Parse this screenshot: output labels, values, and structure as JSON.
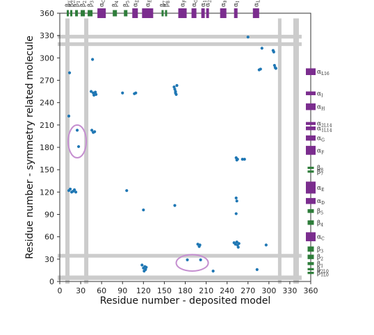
{
  "chart_data": {
    "type": "scatter",
    "xlabel": "Residue number - deposited model",
    "ylabel": "Residue number - symmetry related molecule",
    "xlim": [
      0,
      360
    ],
    "ylim": [
      0,
      360
    ],
    "x_ticks": [
      0,
      30,
      60,
      90,
      120,
      150,
      180,
      210,
      240,
      270,
      300,
      330,
      360
    ],
    "y_ticks": [
      0,
      30,
      60,
      90,
      120,
      150,
      180,
      210,
      240,
      270,
      300,
      330,
      360
    ],
    "point_color": "#1f77b4",
    "grey_band_color": "#cccccc",
    "highlight_color": "#c58fd0",
    "helix_color": "#7b2d8e",
    "strand_color": "#2e7d3a",
    "grey_bands": {
      "vertical": [
        [
          8,
          14
        ],
        [
          35,
          41
        ],
        [
          313,
          318
        ],
        [
          335,
          343
        ]
      ],
      "horizontal": [
        [
          2,
          8
        ],
        [
          32,
          37
        ],
        [
          316,
          321
        ],
        [
          326,
          331
        ]
      ]
    },
    "highlight_ellipses": [
      {
        "cx": 25,
        "cy": 188,
        "rx": 13,
        "ry": 22
      },
      {
        "cx": 190,
        "cy": 25,
        "rx": 23,
        "ry": 11
      }
    ],
    "points": [
      {
        "x": 14,
        "y": 280
      },
      {
        "x": 13,
        "y": 222
      },
      {
        "x": 25,
        "y": 203
      },
      {
        "x": 27,
        "y": 181
      },
      {
        "x": 13,
        "y": 122
      },
      {
        "x": 15,
        "y": 124
      },
      {
        "x": 17,
        "y": 120
      },
      {
        "x": 19,
        "y": 121
      },
      {
        "x": 21,
        "y": 123
      },
      {
        "x": 23,
        "y": 120
      },
      {
        "x": 45,
        "y": 255
      },
      {
        "x": 48,
        "y": 253
      },
      {
        "x": 49,
        "y": 250
      },
      {
        "x": 50,
        "y": 252
      },
      {
        "x": 51,
        "y": 254
      },
      {
        "x": 52,
        "y": 251
      },
      {
        "x": 47,
        "y": 298
      },
      {
        "x": 46,
        "y": 203
      },
      {
        "x": 48,
        "y": 200
      },
      {
        "x": 50,
        "y": 201
      },
      {
        "x": 90,
        "y": 253
      },
      {
        "x": 107,
        "y": 252
      },
      {
        "x": 109,
        "y": 253
      },
      {
        "x": 96,
        "y": 122
      },
      {
        "x": 120,
        "y": 96
      },
      {
        "x": 118,
        "y": 22
      },
      {
        "x": 120,
        "y": 18
      },
      {
        "x": 121,
        "y": 14
      },
      {
        "x": 122,
        "y": 20
      },
      {
        "x": 123,
        "y": 16
      },
      {
        "x": 124,
        "y": 19
      },
      {
        "x": 164,
        "y": 261
      },
      {
        "x": 165,
        "y": 258
      },
      {
        "x": 166,
        "y": 253
      },
      {
        "x": 167,
        "y": 251
      },
      {
        "x": 168,
        "y": 263
      },
      {
        "x": 166,
        "y": 255
      },
      {
        "x": 165,
        "y": 102
      },
      {
        "x": 198,
        "y": 50
      },
      {
        "x": 200,
        "y": 47
      },
      {
        "x": 201,
        "y": 49
      },
      {
        "x": 183,
        "y": 29
      },
      {
        "x": 202,
        "y": 29
      },
      {
        "x": 220,
        "y": 14
      },
      {
        "x": 253,
        "y": 166
      },
      {
        "x": 254,
        "y": 163
      },
      {
        "x": 255,
        "y": 164
      },
      {
        "x": 262,
        "y": 164
      },
      {
        "x": 265,
        "y": 164
      },
      {
        "x": 253,
        "y": 112
      },
      {
        "x": 254,
        "y": 108
      },
      {
        "x": 253,
        "y": 91
      },
      {
        "x": 250,
        "y": 52
      },
      {
        "x": 252,
        "y": 50
      },
      {
        "x": 254,
        "y": 53
      },
      {
        "x": 255,
        "y": 49
      },
      {
        "x": 256,
        "y": 46
      },
      {
        "x": 257,
        "y": 51
      },
      {
        "x": 270,
        "y": 328
      },
      {
        "x": 286,
        "y": 284
      },
      {
        "x": 288,
        "y": 285
      },
      {
        "x": 290,
        "y": 313
      },
      {
        "x": 296,
        "y": 49
      },
      {
        "x": 283,
        "y": 16
      },
      {
        "x": 306,
        "y": 310
      },
      {
        "x": 307,
        "y": 308
      },
      {
        "x": 308,
        "y": 290
      },
      {
        "x": 309,
        "y": 287
      },
      {
        "x": 310,
        "y": 286
      }
    ],
    "top_track_y": 360,
    "right_track_x": 360,
    "sse": [
      {
        "label": "β",
        "sub": "1L0",
        "type": "strand",
        "start": 10,
        "end": 13
      },
      {
        "label": "β",
        "sub": "2L0",
        "type": "strand",
        "start": 15,
        "end": 18
      },
      {
        "label": "β",
        "sub": "1",
        "type": "strand",
        "start": 22,
        "end": 26
      },
      {
        "label": "β",
        "sub": "2",
        "type": "strand",
        "start": 30,
        "end": 36
      },
      {
        "label": "β",
        "sub": "3",
        "type": "strand",
        "start": 40,
        "end": 47
      },
      {
        "label": "α",
        "sub": "C",
        "type": "helix",
        "start": 54,
        "end": 66
      },
      {
        "label": "β",
        "sub": "4",
        "type": "strand",
        "start": 76,
        "end": 82
      },
      {
        "label": "β",
        "sub": "5",
        "type": "strand",
        "start": 92,
        "end": 97
      },
      {
        "label": "α",
        "sub": "D",
        "type": "helix",
        "start": 104,
        "end": 112
      },
      {
        "label": "α",
        "sub": "E",
        "type": "helix",
        "start": 118,
        "end": 134
      },
      {
        "label": "β",
        "sub": "7",
        "type": "strand",
        "start": 146,
        "end": 149
      },
      {
        "label": "β",
        "sub": "8",
        "type": "strand",
        "start": 151,
        "end": 154
      },
      {
        "label": "α",
        "sub": "F",
        "type": "helix",
        "start": 170,
        "end": 182
      },
      {
        "label": "α",
        "sub": "G",
        "type": "helix",
        "start": 189,
        "end": 196
      },
      {
        "label": "α",
        "sub": "1L14",
        "type": "helix",
        "start": 203,
        "end": 208
      },
      {
        "label": "α",
        "sub": "2L14",
        "type": "helix",
        "start": 210,
        "end": 214
      },
      {
        "label": "α",
        "sub": "H",
        "type": "helix",
        "start": 230,
        "end": 239
      },
      {
        "label": "α",
        "sub": "I",
        "type": "helix",
        "start": 250,
        "end": 255
      },
      {
        "label": "α",
        "sub": "L16",
        "type": "helix",
        "start": 277,
        "end": 286
      }
    ]
  }
}
